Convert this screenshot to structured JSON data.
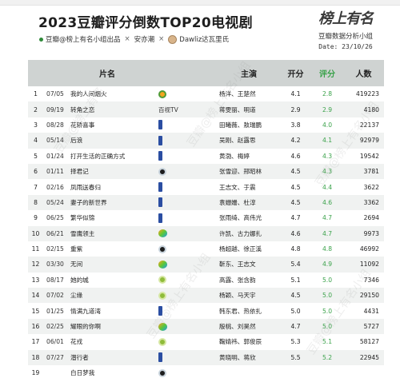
{
  "title": "2023豆瓣评分倒数TOP20电视剧",
  "subtitle": {
    "part1": "豆瓣@榜上有名小组出品",
    "sep": "×",
    "part2": "安亦潮",
    "part3": "Dawliz达瓦里氏"
  },
  "brand": {
    "logo": "榜上有名",
    "org": "豆瓣数据分析小组",
    "date": "Date: 23/10/26"
  },
  "table": {
    "headers": {
      "name": "片名",
      "cast": "主演",
      "open": "开分",
      "score": "评分",
      "count": "人数"
    },
    "rows": [
      {
        "rank": "1",
        "date": "07/05",
        "name": "我的人间烟火",
        "platform": "mango-icon",
        "platform_text": "",
        "cast": "杨洋、王楚然",
        "open": "4.1",
        "score": "2.8",
        "count": "419223"
      },
      {
        "rank": "2",
        "date": "09/19",
        "name": "转角之恋",
        "platform": "",
        "platform_text": "百视TV",
        "cast": "蒋雯丽、明道",
        "open": "2.9",
        "score": "2.9",
        "count": "4180"
      },
      {
        "rank": "3",
        "date": "08/28",
        "name": "花轿喜事",
        "platform": "bar-icon",
        "platform_text": "",
        "cast": "田曦薇、敖瑞鹏",
        "open": "3.8",
        "score": "4.0",
        "count": "22137"
      },
      {
        "rank": "4",
        "date": "05/14",
        "name": "后浪",
        "platform": "bar-icon",
        "platform_text": "",
        "cast": "吴刚、赵露思",
        "open": "4.2",
        "score": "4.1",
        "count": "92979"
      },
      {
        "rank": "5",
        "date": "01/24",
        "name": "打开生活的正确方式",
        "platform": "bar-icon",
        "platform_text": "",
        "cast": "黄渤、梅婷",
        "open": "4.6",
        "score": "4.3",
        "count": "19542"
      },
      {
        "rank": "6",
        "date": "01/11",
        "name": "择君记",
        "platform": "youku-icon",
        "platform_text": "",
        "cast": "张雪迎、邢昭林",
        "open": "4.5",
        "score": "4.3",
        "count": "3781"
      },
      {
        "rank": "7",
        "date": "02/16",
        "name": "凤雨送春归",
        "platform": "bar-icon",
        "platform_text": "",
        "cast": "王志文、于震",
        "open": "4.5",
        "score": "4.4",
        "count": "3622"
      },
      {
        "rank": "8",
        "date": "05/24",
        "name": "妻子的新世界",
        "platform": "bar-icon",
        "platform_text": "",
        "cast": "袁姗姗、杜淳",
        "open": "4.5",
        "score": "4.6",
        "count": "3362"
      },
      {
        "rank": "9",
        "date": "06/25",
        "name": "繁华似锦",
        "platform": "bar-icon",
        "platform_text": "",
        "cast": "张雨绮、高伟光",
        "open": "4.7",
        "score": "4.7",
        "count": "2694"
      },
      {
        "rank": "10",
        "date": "06/21",
        "name": "雪鹰领主",
        "platform": "tencent-icon",
        "platform_text": "",
        "cast": "许凯、古力娜扎",
        "open": "4.6",
        "score": "4.7",
        "count": "9973"
      },
      {
        "rank": "11",
        "date": "02/15",
        "name": "重紫",
        "platform": "youku-icon",
        "platform_text": "",
        "cast": "杨超越、徐正溪",
        "open": "4.8",
        "score": "4.8",
        "count": "46992"
      },
      {
        "rank": "12",
        "date": "03/30",
        "name": "无间",
        "platform": "tencent-icon",
        "platform_text": "",
        "cast": "靳东、王志文",
        "open": "5.4",
        "score": "4.9",
        "count": "11092"
      },
      {
        "rank": "13",
        "date": "08/17",
        "name": "她的城",
        "platform": "iqiyi-icon",
        "platform_text": "",
        "cast": "高露、张含韵",
        "open": "5.1",
        "score": "5.0",
        "count": "7346"
      },
      {
        "rank": "14",
        "date": "07/02",
        "name": "尘缘",
        "platform": "iqiyi-icon",
        "platform_text": "",
        "cast": "杨颖、马天宇",
        "open": "4.5",
        "score": "5.0",
        "count": "29150"
      },
      {
        "rank": "15",
        "date": "01/25",
        "name": "情满九道湾",
        "platform": "bar-icon",
        "platform_text": "",
        "cast": "韩东君、热依扎",
        "open": "5.0",
        "score": "5.0",
        "count": "4431"
      },
      {
        "rank": "16",
        "date": "02/25",
        "name": "耀眼的你啊",
        "platform": "tencent-icon",
        "platform_text": "",
        "cast": "殷桃、刘昊然",
        "open": "4.7",
        "score": "5.0",
        "count": "5727"
      },
      {
        "rank": "17",
        "date": "06/01",
        "name": "花戎",
        "platform": "iqiyi-icon",
        "platform_text": "",
        "cast": "鞠婧祎、郭俊辰",
        "open": "5.3",
        "score": "5.1",
        "count": "58127"
      },
      {
        "rank": "18",
        "date": "07/27",
        "name": "潜行者",
        "platform": "bar-icon",
        "platform_text": "",
        "cast": "黄晓明、蒋欣",
        "open": "5.5",
        "score": "5.2",
        "count": "22945"
      },
      {
        "rank": "19",
        "date": "",
        "name": "白日梦我",
        "platform": "youku-icon",
        "platform_text": "",
        "cast": "",
        "open": "",
        "score": "",
        "count": ""
      }
    ]
  },
  "colors": {
    "score_green": "#3aa24a",
    "header_gray": "#cfd3d2",
    "row_alt": "#f0f2f1"
  }
}
